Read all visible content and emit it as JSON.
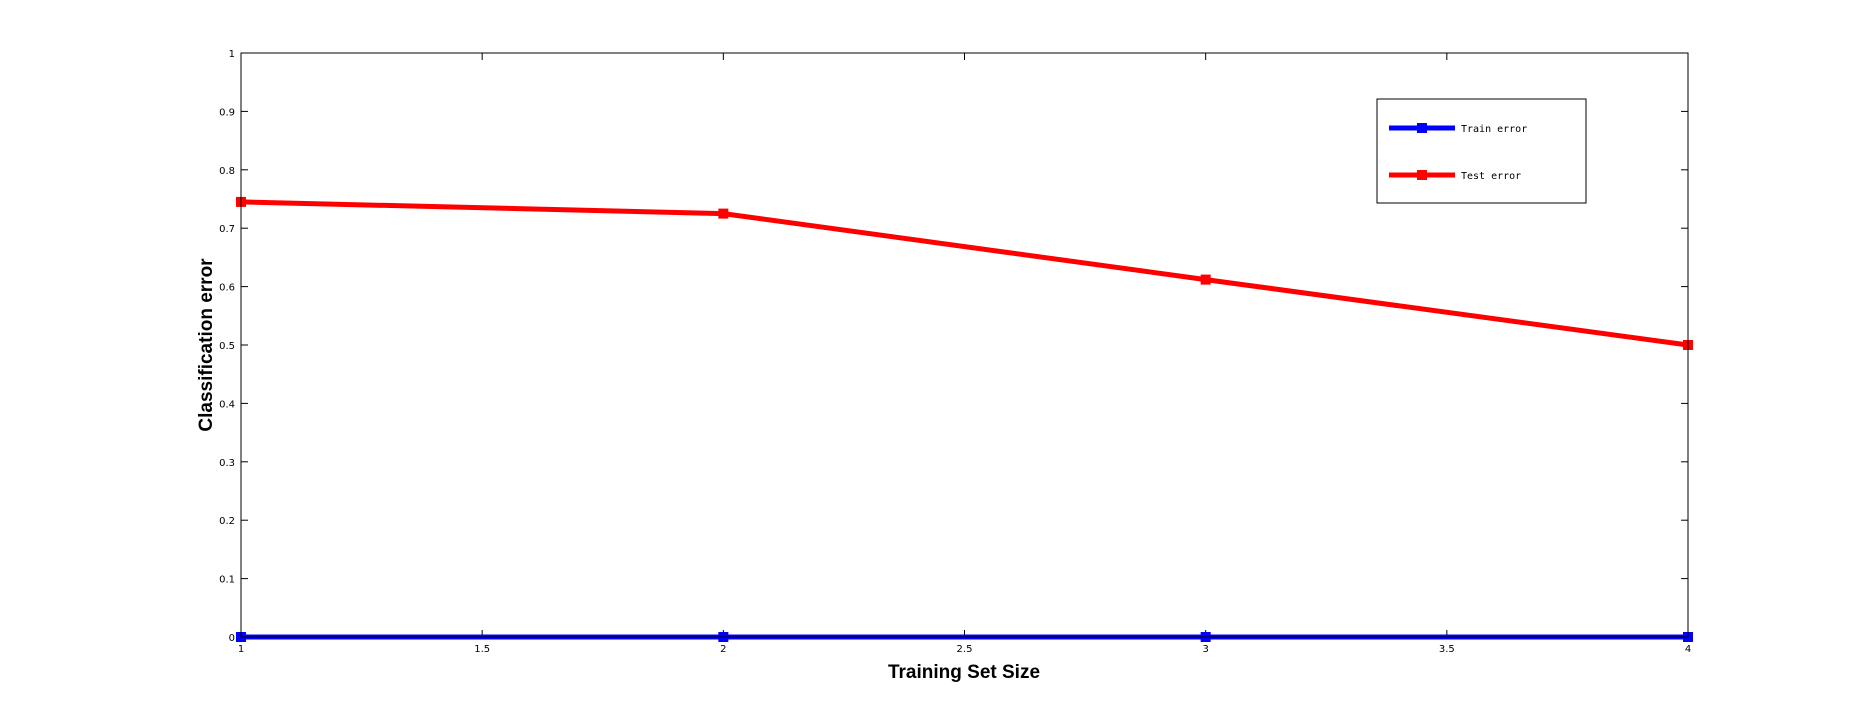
{
  "chart_data": {
    "type": "line",
    "title": "",
    "xlabel": "Training Set Size",
    "ylabel": "Classification error",
    "xlim": [
      1,
      4
    ],
    "ylim": [
      0,
      1
    ],
    "xticks": [
      1,
      1.5,
      2,
      2.5,
      3,
      3.5,
      4
    ],
    "xtick_labels": [
      "1",
      "1.5",
      "2",
      "2.5",
      "3",
      "3.5",
      "4"
    ],
    "yticks": [
      0,
      0.1,
      0.2,
      0.3,
      0.4,
      0.5,
      0.6,
      0.7,
      0.8,
      0.9,
      1
    ],
    "ytick_labels": [
      "0",
      "0.1",
      "0.2",
      "0.3",
      "0.4",
      "0.5",
      "0.6",
      "0.7",
      "0.8",
      "0.9",
      "1"
    ],
    "grid": false,
    "legend_position": "top-right",
    "x": [
      1,
      2,
      3,
      4
    ],
    "series": [
      {
        "name": "Train error",
        "color": "#0000ff",
        "values": [
          0,
          0,
          0,
          0
        ]
      },
      {
        "name": "Test error",
        "color": "#ff0000",
        "values": [
          0.745,
          0.725,
          0.612,
          0.5
        ]
      }
    ]
  }
}
